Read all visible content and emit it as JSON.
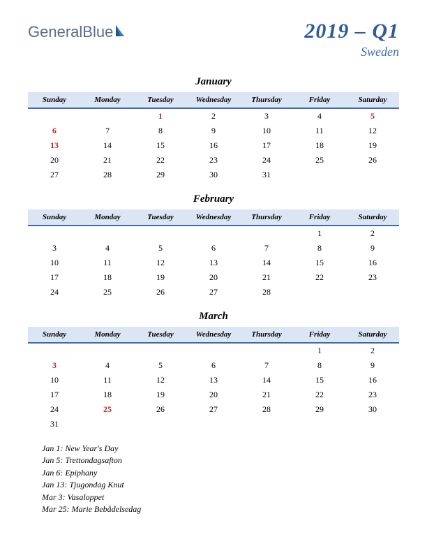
{
  "logo": {
    "general": "General",
    "blue": "Blue"
  },
  "title": {
    "main": "2019 – Q1",
    "sub": "Sweden"
  },
  "colors": {
    "header_bg": "#dbe5f3",
    "header_border": "#3a6bb0",
    "title_color": "#2f5b9b",
    "subtitle_color": "#3a6bb0",
    "logo_color": "#5a6b8c",
    "holiday_color": "#b02828",
    "text_color": "#000000",
    "page_bg": "#ffffff"
  },
  "day_headers": [
    "Sunday",
    "Monday",
    "Tuesday",
    "Wednesday",
    "Thursday",
    "Friday",
    "Saturday"
  ],
  "months": [
    {
      "name": "January",
      "weeks": [
        [
          {
            "d": ""
          },
          {
            "d": ""
          },
          {
            "d": "1",
            "h": true
          },
          {
            "d": "2"
          },
          {
            "d": "3"
          },
          {
            "d": "4"
          },
          {
            "d": "5",
            "h": true
          }
        ],
        [
          {
            "d": "6",
            "h": true
          },
          {
            "d": "7"
          },
          {
            "d": "8"
          },
          {
            "d": "9"
          },
          {
            "d": "10"
          },
          {
            "d": "11"
          },
          {
            "d": "12"
          }
        ],
        [
          {
            "d": "13",
            "h": true
          },
          {
            "d": "14"
          },
          {
            "d": "15"
          },
          {
            "d": "16"
          },
          {
            "d": "17"
          },
          {
            "d": "18"
          },
          {
            "d": "19"
          }
        ],
        [
          {
            "d": "20"
          },
          {
            "d": "21"
          },
          {
            "d": "22"
          },
          {
            "d": "23"
          },
          {
            "d": "24"
          },
          {
            "d": "25"
          },
          {
            "d": "26"
          }
        ],
        [
          {
            "d": "27"
          },
          {
            "d": "28"
          },
          {
            "d": "29"
          },
          {
            "d": "30"
          },
          {
            "d": "31"
          },
          {
            "d": ""
          },
          {
            "d": ""
          }
        ]
      ]
    },
    {
      "name": "February",
      "weeks": [
        [
          {
            "d": ""
          },
          {
            "d": ""
          },
          {
            "d": ""
          },
          {
            "d": ""
          },
          {
            "d": ""
          },
          {
            "d": "1"
          },
          {
            "d": "2"
          }
        ],
        [
          {
            "d": "3"
          },
          {
            "d": "4"
          },
          {
            "d": "5"
          },
          {
            "d": "6"
          },
          {
            "d": "7"
          },
          {
            "d": "8"
          },
          {
            "d": "9"
          }
        ],
        [
          {
            "d": "10"
          },
          {
            "d": "11"
          },
          {
            "d": "12"
          },
          {
            "d": "13"
          },
          {
            "d": "14"
          },
          {
            "d": "15"
          },
          {
            "d": "16"
          }
        ],
        [
          {
            "d": "17"
          },
          {
            "d": "18"
          },
          {
            "d": "19"
          },
          {
            "d": "20"
          },
          {
            "d": "21"
          },
          {
            "d": "22"
          },
          {
            "d": "23"
          }
        ],
        [
          {
            "d": "24"
          },
          {
            "d": "25"
          },
          {
            "d": "26"
          },
          {
            "d": "27"
          },
          {
            "d": "28"
          },
          {
            "d": ""
          },
          {
            "d": ""
          }
        ]
      ]
    },
    {
      "name": "March",
      "weeks": [
        [
          {
            "d": ""
          },
          {
            "d": ""
          },
          {
            "d": ""
          },
          {
            "d": ""
          },
          {
            "d": ""
          },
          {
            "d": "1"
          },
          {
            "d": "2"
          }
        ],
        [
          {
            "d": "3",
            "h": true
          },
          {
            "d": "4"
          },
          {
            "d": "5"
          },
          {
            "d": "6"
          },
          {
            "d": "7"
          },
          {
            "d": "8"
          },
          {
            "d": "9"
          }
        ],
        [
          {
            "d": "10"
          },
          {
            "d": "11"
          },
          {
            "d": "12"
          },
          {
            "d": "13"
          },
          {
            "d": "14"
          },
          {
            "d": "15"
          },
          {
            "d": "16"
          }
        ],
        [
          {
            "d": "17"
          },
          {
            "d": "18"
          },
          {
            "d": "19"
          },
          {
            "d": "20"
          },
          {
            "d": "21"
          },
          {
            "d": "22"
          },
          {
            "d": "23"
          }
        ],
        [
          {
            "d": "24"
          },
          {
            "d": "25",
            "h": true
          },
          {
            "d": "26"
          },
          {
            "d": "27"
          },
          {
            "d": "28"
          },
          {
            "d": "29"
          },
          {
            "d": "30"
          }
        ],
        [
          {
            "d": "31"
          },
          {
            "d": ""
          },
          {
            "d": ""
          },
          {
            "d": ""
          },
          {
            "d": ""
          },
          {
            "d": ""
          },
          {
            "d": ""
          }
        ]
      ]
    }
  ],
  "holidays": [
    "Jan 1: New Year's Day",
    "Jan 5: Trettondagsafton",
    "Jan 6: Epiphany",
    "Jan 13: Tjugondag Knut",
    "Mar 3: Vasaloppet",
    "Mar 25: Marie Bebådelsedag"
  ]
}
